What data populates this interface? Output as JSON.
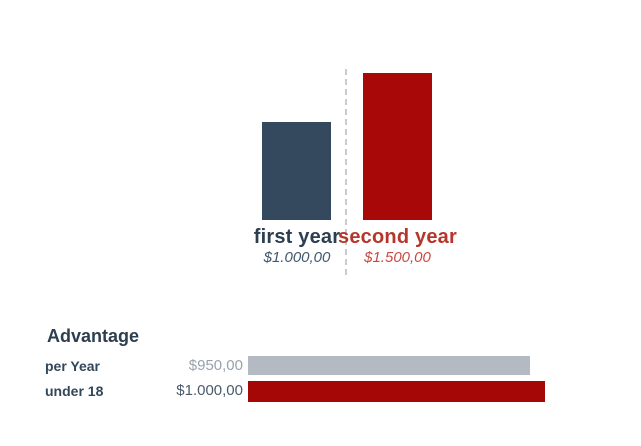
{
  "chart_data": [
    {
      "type": "bar",
      "orientation": "vertical",
      "title": "",
      "categories": [
        "first year",
        "second year"
      ],
      "values": [
        1000,
        1500
      ],
      "value_labels": [
        "$1.000,00",
        "$1.500,00"
      ],
      "bar_colors": [
        "#35495e",
        "#a90808"
      ],
      "label_colors": [
        "#2c3e50",
        "#b5372b"
      ],
      "value_label_colors": [
        "#41586e",
        "#ca4a43"
      ],
      "ylim": [
        0,
        1500
      ],
      "grid": false,
      "legend": false,
      "divider_style": "vertical-dashed",
      "divider_color": "#cbcbcb"
    },
    {
      "type": "bar",
      "orientation": "horizontal",
      "title": "Advantage",
      "title_color": "#2c3e50",
      "categories": [
        "per Year",
        "under 18"
      ],
      "category_label_color": "#31475a",
      "values": [
        950,
        1000
      ],
      "value_labels": [
        "$950,00",
        "$1.000,00"
      ],
      "bar_colors": [
        "#b3bac2",
        "#a50707"
      ],
      "value_label_colors": [
        "#98a2ae",
        "#4a5a6c"
      ],
      "xlim": [
        0,
        1000
      ],
      "grid": false,
      "legend": false
    }
  ]
}
